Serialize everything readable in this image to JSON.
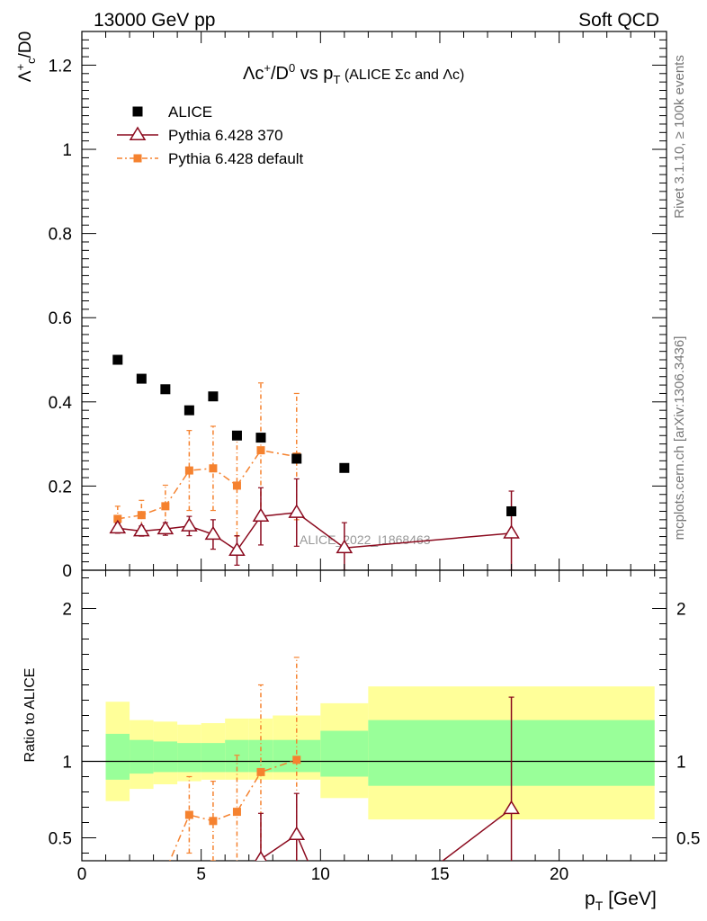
{
  "header": {
    "left": "13000 GeV pp",
    "right": "Soft QCD"
  },
  "side_labels": {
    "rivet": "Rivet 3.1.10, ≥ 100k events",
    "mcplots": "mcplots.cern.ch [arXiv:1306.3436]"
  },
  "watermark": "ALICE_2022_I1868463",
  "colors": {
    "data": "#000000",
    "pythia370": "#8b0a1e",
    "pythia_default": "#f5822f",
    "band_inner": "#99ff99",
    "band_outer": "#ffff99"
  },
  "chart_data": [
    {
      "type": "scatter",
      "title": "Λc⁺/D⁰ vs p_T (ALICE Σc and Λc)",
      "ylabel": "Λc⁺/D0",
      "xlim": [
        0,
        24.5
      ],
      "ylim": [
        0,
        1.28
      ],
      "yticks": [
        0,
        0.2,
        0.4,
        0.6,
        0.8,
        1,
        1.2
      ],
      "ytick_labels": [
        "0",
        "0.2",
        "0.4",
        "0.6",
        "0.8",
        "1",
        "1.2"
      ],
      "legend": [
        "ALICE",
        "Pythia 6.428 370",
        "Pythia 6.428 default"
      ],
      "series": [
        {
          "name": "ALICE",
          "x": [
            1.5,
            2.5,
            3.5,
            4.5,
            5.5,
            6.5,
            7.5,
            9,
            11,
            18
          ],
          "y": [
            0.5,
            0.455,
            0.43,
            0.38,
            0.413,
            0.32,
            0.315,
            0.265,
            0.243,
            0.14
          ]
        },
        {
          "name": "Pythia 6.428 370",
          "x": [
            1.5,
            2.5,
            3.5,
            4.5,
            5.5,
            6.5,
            7.5,
            9,
            11,
            18
          ],
          "y": [
            0.1,
            0.093,
            0.098,
            0.105,
            0.085,
            0.047,
            0.128,
            0.137,
            0.053,
            0.088
          ],
          "err": [
            0.012,
            0.012,
            0.015,
            0.023,
            0.035,
            0.035,
            0.068,
            0.08,
            0.06,
            0.1
          ]
        },
        {
          "name": "Pythia 6.428 default",
          "x": [
            1.5,
            2.5,
            3.5,
            4.5,
            5.5,
            6.5,
            7.5,
            9
          ],
          "y": [
            0.122,
            0.131,
            0.152,
            0.237,
            0.242,
            0.201,
            0.285,
            0.27
          ],
          "err": [
            0.03,
            0.035,
            0.05,
            0.095,
            0.1,
            0.12,
            0.16,
            0.15
          ]
        }
      ]
    },
    {
      "type": "scatter",
      "ylabel": "Ratio to ALICE",
      "xlabel": "p_T [GeV]",
      "xlim": [
        0,
        24.5
      ],
      "ylim": [
        0.35,
        2.25
      ],
      "xticks": [
        0,
        5,
        10,
        15,
        20
      ],
      "xtick_labels": [
        "0",
        "5",
        "10",
        "15",
        "20"
      ],
      "yticks": [
        0.5,
        1,
        2
      ],
      "ytick_labels": [
        "0.5",
        "1",
        "2"
      ],
      "bands": [
        {
          "lo": 1,
          "hi": 2,
          "inner": [
            0.88,
            1.18
          ],
          "outer": [
            0.74,
            1.39
          ]
        },
        {
          "lo": 2,
          "hi": 3,
          "inner": [
            0.92,
            1.14
          ],
          "outer": [
            0.82,
            1.27
          ]
        },
        {
          "lo": 3,
          "hi": 4,
          "inner": [
            0.93,
            1.13
          ],
          "outer": [
            0.85,
            1.26
          ]
        },
        {
          "lo": 4,
          "hi": 5,
          "inner": [
            0.93,
            1.12
          ],
          "outer": [
            0.87,
            1.24
          ]
        },
        {
          "lo": 5,
          "hi": 6,
          "inner": [
            0.93,
            1.12
          ],
          "outer": [
            0.88,
            1.25
          ]
        },
        {
          "lo": 6,
          "hi": 7,
          "inner": [
            0.93,
            1.14
          ],
          "outer": [
            0.88,
            1.28
          ]
        },
        {
          "lo": 7,
          "hi": 8,
          "inner": [
            0.93,
            1.14
          ],
          "outer": [
            0.88,
            1.28
          ]
        },
        {
          "lo": 8,
          "hi": 10,
          "inner": [
            0.93,
            1.14
          ],
          "outer": [
            0.88,
            1.3
          ]
        },
        {
          "lo": 10,
          "hi": 12,
          "inner": [
            0.9,
            1.2
          ],
          "outer": [
            0.76,
            1.38
          ]
        },
        {
          "lo": 12,
          "hi": 24,
          "inner": [
            0.84,
            1.27
          ],
          "outer": [
            0.62,
            1.49
          ]
        }
      ],
      "series": [
        {
          "name": "Pythia 6.428 370 / ALICE",
          "x": [
            7.5,
            9,
            18
          ],
          "y": [
            0.36,
            0.52,
            0.69
          ],
          "err": [
            0.3,
            0.27,
            0.73
          ]
        },
        {
          "name": "Pythia 6.428 default / ALICE",
          "x": [
            4.5,
            5.5,
            6.5,
            7.5,
            9
          ],
          "y": [
            0.65,
            0.61,
            0.67,
            0.93,
            1.01
          ],
          "err": [
            0.25,
            0.26,
            0.37,
            0.57,
            0.67
          ]
        }
      ]
    }
  ]
}
